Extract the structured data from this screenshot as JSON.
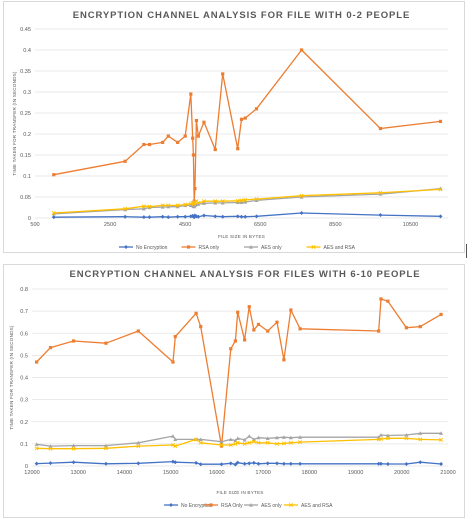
{
  "chart_data": [
    {
      "type": "line",
      "title": "ENCRYPTION CHANNEL ANALYSIS FOR FILE WITH 0-2 PEOPLE",
      "xlabel": "FILE SIZE IN BYTES",
      "ylabel": "TIME TAKEN FOR TRANSFER (IN SECONDS)",
      "xlim": [
        500,
        11500
      ],
      "ylim": [
        0,
        0.45
      ],
      "xticks": [
        500,
        2500,
        4500,
        6500,
        8500,
        10500
      ],
      "yticks": [
        0,
        0.05,
        0.1,
        0.15,
        0.2,
        0.25,
        0.3,
        0.35,
        0.4,
        0.45
      ],
      "grid": true,
      "legend_position": "bottom",
      "series": [
        {
          "name": "No Encryption",
          "color": "#4472c4",
          "marker": "diamond",
          "x": [
            1000,
            2900,
            3400,
            3550,
            3900,
            4050,
            4300,
            4500,
            4650,
            4700,
            4720,
            4740,
            4760,
            4800,
            4850,
            5000,
            5300,
            5500,
            5900,
            6000,
            6100,
            6400,
            7600,
            9700,
            11300
          ],
          "y": [
            0.002,
            0.003,
            0.002,
            0.002,
            0.003,
            0.002,
            0.003,
            0.003,
            0.004,
            0.005,
            0.003,
            0.002,
            0.006,
            0.004,
            0.003,
            0.006,
            0.004,
            0.003,
            0.004,
            0.003,
            0.003,
            0.004,
            0.012,
            0.007,
            0.004
          ]
        },
        {
          "name": "RSA only",
          "color": "#ed7d31",
          "marker": "square",
          "x": [
            1000,
            2900,
            3400,
            3550,
            3900,
            4050,
            4300,
            4500,
            4650,
            4700,
            4720,
            4740,
            4760,
            4800,
            4850,
            5000,
            5300,
            5500,
            5900,
            6000,
            6100,
            6400,
            7600,
            9700,
            11300
          ],
          "y": [
            0.103,
            0.135,
            0.175,
            0.175,
            0.18,
            0.195,
            0.18,
            0.195,
            0.295,
            0.19,
            0.15,
            0.04,
            0.07,
            0.232,
            0.195,
            0.228,
            0.163,
            0.343,
            0.165,
            0.235,
            0.238,
            0.26,
            0.4,
            0.213,
            0.23
          ]
        },
        {
          "name": "AES only",
          "color": "#a5a5a5",
          "marker": "triangle",
          "x": [
            1000,
            2900,
            3400,
            3550,
            3900,
            4050,
            4300,
            4500,
            4650,
            4700,
            4720,
            4740,
            4760,
            4800,
            4850,
            5000,
            5300,
            5500,
            5900,
            6000,
            6100,
            6400,
            7600,
            9700,
            11300
          ],
          "y": [
            0.01,
            0.02,
            0.022,
            0.025,
            0.026,
            0.027,
            0.027,
            0.03,
            0.03,
            0.031,
            0.028,
            0.027,
            0.03,
            0.032,
            0.033,
            0.035,
            0.036,
            0.036,
            0.037,
            0.037,
            0.038,
            0.042,
            0.05,
            0.057,
            0.07
          ]
        },
        {
          "name": "AES and RSA",
          "color": "#ffc000",
          "marker": "cross",
          "x": [
            1000,
            2900,
            3400,
            3550,
            3900,
            4050,
            4300,
            4500,
            4650,
            4700,
            4720,
            4740,
            4760,
            4800,
            4850,
            5000,
            5300,
            5500,
            5900,
            6000,
            6100,
            6400,
            7600,
            9700,
            11300
          ],
          "y": [
            0.012,
            0.022,
            0.028,
            0.027,
            0.03,
            0.03,
            0.03,
            0.032,
            0.034,
            0.036,
            0.035,
            0.033,
            0.038,
            0.04,
            0.036,
            0.04,
            0.04,
            0.04,
            0.041,
            0.042,
            0.043,
            0.045,
            0.053,
            0.06,
            0.068
          ]
        }
      ]
    },
    {
      "type": "line",
      "title": "ENCRYPTION CHANNEL ANALYSIS FOR FILES WITH 6-10 PEOPLE",
      "xlabel": "FILE SIZE IN BYTES",
      "ylabel": "TIME TAKEN FOR TRANSFER (IN SECONDS)",
      "xlim": [
        12000,
        21000
      ],
      "ylim": [
        0,
        0.8
      ],
      "xticks": [
        12000,
        13000,
        14000,
        15000,
        16000,
        17000,
        18000,
        19000,
        20000,
        21000
      ],
      "yticks": [
        0,
        0.1,
        0.2,
        0.3,
        0.4,
        0.5,
        0.6,
        0.7,
        0.8
      ],
      "grid": true,
      "legend_position": "bottom",
      "series": [
        {
          "name": "No Encryption",
          "color": "#4472c4",
          "marker": "diamond",
          "x": [
            12100,
            12400,
            12900,
            13600,
            14300,
            15050,
            15100,
            15550,
            15650,
            16100,
            16300,
            16400,
            16450,
            16600,
            16700,
            16800,
            16900,
            17100,
            17300,
            17450,
            17600,
            17800,
            19500,
            19550,
            19700,
            20100,
            20400,
            20850
          ],
          "y": [
            0.011,
            0.013,
            0.017,
            0.01,
            0.012,
            0.02,
            0.017,
            0.014,
            0.008,
            0.008,
            0.012,
            0.007,
            0.015,
            0.01,
            0.012,
            0.014,
            0.01,
            0.012,
            0.012,
            0.01,
            0.01,
            0.01,
            0.01,
            0.01,
            0.009,
            0.009,
            0.017,
            0.009
          ]
        },
        {
          "name": "RSA Only",
          "color": "#ed7d31",
          "marker": "square",
          "x": [
            12100,
            12400,
            12900,
            13600,
            14300,
            15050,
            15100,
            15550,
            15650,
            16100,
            16300,
            16400,
            16450,
            16600,
            16700,
            16800,
            16900,
            17100,
            17300,
            17450,
            17600,
            17800,
            19500,
            19550,
            19700,
            20100,
            20400,
            20850
          ],
          "y": [
            0.47,
            0.535,
            0.565,
            0.555,
            0.61,
            0.47,
            0.585,
            0.69,
            0.63,
            0.09,
            0.53,
            0.565,
            0.695,
            0.57,
            0.72,
            0.615,
            0.64,
            0.61,
            0.65,
            0.48,
            0.705,
            0.62,
            0.61,
            0.755,
            0.745,
            0.625,
            0.63,
            0.685
          ]
        },
        {
          "name": "AES only",
          "color": "#a5a5a5",
          "marker": "triangle",
          "x": [
            12100,
            12400,
            12900,
            13600,
            14300,
            15050,
            15100,
            15550,
            15650,
            16100,
            16300,
            16400,
            16450,
            16600,
            16700,
            16800,
            16900,
            17100,
            17300,
            17450,
            17600,
            17800,
            19500,
            19550,
            19700,
            20100,
            20400,
            20850
          ],
          "y": [
            0.098,
            0.09,
            0.092,
            0.092,
            0.105,
            0.135,
            0.12,
            0.12,
            0.12,
            0.11,
            0.12,
            0.115,
            0.125,
            0.118,
            0.135,
            0.12,
            0.128,
            0.125,
            0.128,
            0.13,
            0.128,
            0.13,
            0.13,
            0.14,
            0.138,
            0.14,
            0.148,
            0.148
          ]
        },
        {
          "name": "AES and RSA",
          "color": "#ffc000",
          "marker": "cross",
          "x": [
            12100,
            12400,
            12900,
            13600,
            14300,
            15050,
            15100,
            15550,
            15650,
            16100,
            16300,
            16400,
            16450,
            16600,
            16700,
            16800,
            16900,
            17100,
            17300,
            17450,
            17600,
            17800,
            19500,
            19550,
            19700,
            20100,
            20400,
            20850
          ],
          "y": [
            0.08,
            0.078,
            0.078,
            0.08,
            0.09,
            0.095,
            0.09,
            0.12,
            0.105,
            0.095,
            0.095,
            0.1,
            0.105,
            0.1,
            0.105,
            0.11,
            0.105,
            0.105,
            0.1,
            0.102,
            0.105,
            0.108,
            0.12,
            0.122,
            0.125,
            0.125,
            0.12,
            0.118
          ]
        }
      ]
    }
  ]
}
